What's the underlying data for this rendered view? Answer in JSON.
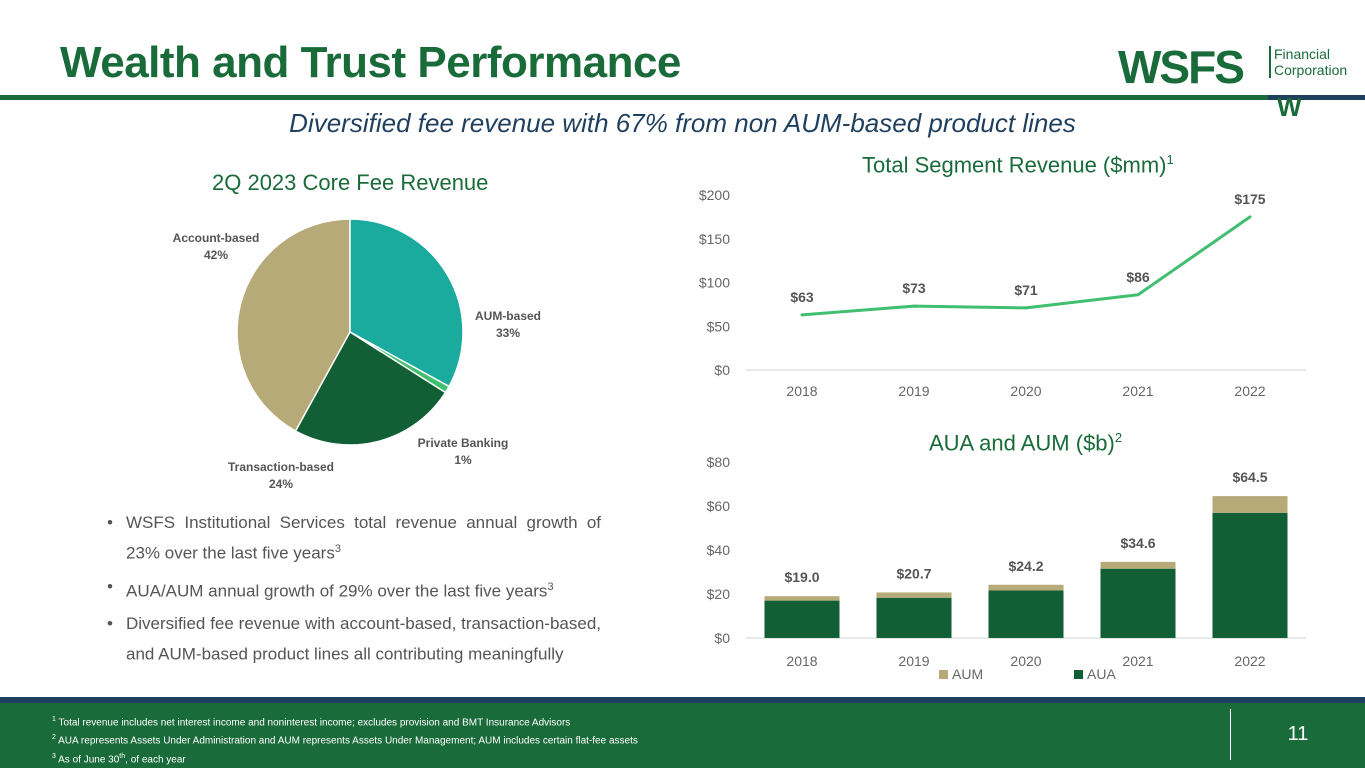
{
  "header": {
    "title": "Wealth and Trust Performance",
    "logo_text": "WSFS",
    "logo_sub_line1": "Financial",
    "logo_sub_line2": "Corporation",
    "logo_mark": "W"
  },
  "subtitle": "Diversified fee revenue with 67% from non AUM-based product lines",
  "colors": {
    "brand_green": "#1a6b3a",
    "navy": "#1f3f5e",
    "khaki": "#b5aa78",
    "teal": "#1aaa9e",
    "dark_green": "#125e35",
    "bright_green": "#3fbf6f"
  },
  "chart_data": [
    {
      "type": "pie",
      "title": "2Q 2023 Core Fee Revenue",
      "slices": [
        {
          "name": "Account-based",
          "value": 42,
          "label": "42%",
          "color": "#b5aa78"
        },
        {
          "name": "AUM-based",
          "value": 33,
          "label": "33%",
          "color": "#1aaa9e"
        },
        {
          "name": "Private Banking",
          "value": 1,
          "label": "1%",
          "color": "#3fbf6f"
        },
        {
          "name": "Transaction-based",
          "value": 24,
          "label": "24%",
          "color": "#125e35"
        }
      ]
    },
    {
      "type": "line",
      "title": "Total Segment Revenue ($mm)",
      "title_sup": "1",
      "categories": [
        "2018",
        "2019",
        "2020",
        "2021",
        "2022"
      ],
      "values": [
        63,
        73,
        71,
        86,
        175
      ],
      "data_labels": [
        "$63",
        "$73",
        "$71",
        "$86",
        "$175"
      ],
      "yticks": [
        "$0",
        "$50",
        "$100",
        "$150",
        "$200"
      ],
      "ylim": [
        0,
        200
      ],
      "color": "#3fbf6f"
    },
    {
      "type": "bar",
      "stacked": true,
      "title": "AUA and AUM ($b)",
      "title_sup": "2",
      "categories": [
        "2018",
        "2019",
        "2020",
        "2021",
        "2022"
      ],
      "series": [
        {
          "name": "AUA",
          "values": [
            17.0,
            18.3,
            21.6,
            31.5,
            56.9
          ],
          "color": "#125e35"
        },
        {
          "name": "AUM",
          "values": [
            2.0,
            2.4,
            2.6,
            3.1,
            7.6
          ],
          "color": "#b5aa78"
        }
      ],
      "totals": [
        "$19.0",
        "$20.7",
        "$24.2",
        "$34.6",
        "$64.5"
      ],
      "totals_values": [
        19.0,
        20.7,
        24.2,
        34.6,
        64.5
      ],
      "yticks": [
        "$0",
        "$20",
        "$40",
        "$60",
        "$80"
      ],
      "ylim": [
        0,
        80
      ],
      "legend": [
        "AUM",
        "AUA"
      ]
    }
  ],
  "bullets": [
    {
      "text": "WSFS Institutional Services total revenue annual growth of 23% over the last five years",
      "sup": "3"
    },
    {
      "text": "AUA/AUM annual growth of 29% over the last five years",
      "sup": "3"
    },
    {
      "text": "Diversified fee revenue with account-based, transaction-based, and AUM-based product lines all contributing meaningfully",
      "sup": ""
    }
  ],
  "footer": {
    "footnote1_num": "1",
    "footnote1": "Total revenue includes net interest income and noninterest income; excludes provision and BMT Insurance Advisors",
    "footnote2_num": "2",
    "footnote2": "AUA represents Assets Under Administration and AUM represents Assets Under Management; AUM includes certain flat-fee assets",
    "footnote3_num": "3",
    "footnote3_a": "As of June 30",
    "footnote3_sup": "th",
    "footnote3_b": ", of each year",
    "page_number": "11"
  }
}
